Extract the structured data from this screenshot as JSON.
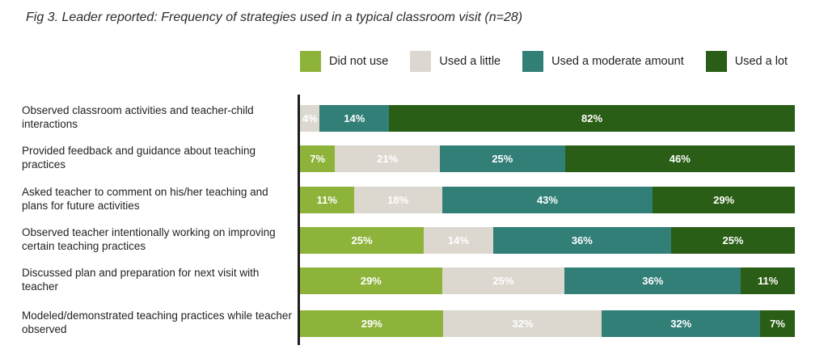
{
  "title": "Fig 3. Leader reported: Frequency of strategies used in a typical classroom visit (n=28)",
  "chart_data": {
    "type": "bar",
    "orientation": "horizontal",
    "stacked": true,
    "percent_scale": true,
    "legend_position": "top",
    "categories": [
      "Observed classroom activities and teacher-child interactions",
      "Provided feedback and guidance about teaching practices",
      "Asked teacher to comment on his/her teaching and plans for future activities",
      "Observed teacher intentionally working on improving certain teaching practices",
      "Discussed plan and preparation for next visit with teacher",
      "Modeled/demonstrated teaching practices while teacher observed"
    ],
    "series": [
      {
        "name": "Did not use",
        "color": "#8db33a",
        "values": [
          0,
          7,
          11,
          25,
          29,
          29
        ]
      },
      {
        "name": "Used a little",
        "color": "#dcd8cf",
        "values": [
          4,
          21,
          18,
          14,
          25,
          32
        ]
      },
      {
        "name": "Used a moderate amount",
        "color": "#327f78",
        "values": [
          14,
          25,
          43,
          36,
          36,
          32
        ]
      },
      {
        "name": "Used a lot",
        "color": "#2a5e16",
        "values": [
          82,
          46,
          29,
          25,
          11,
          7
        ]
      }
    ]
  }
}
